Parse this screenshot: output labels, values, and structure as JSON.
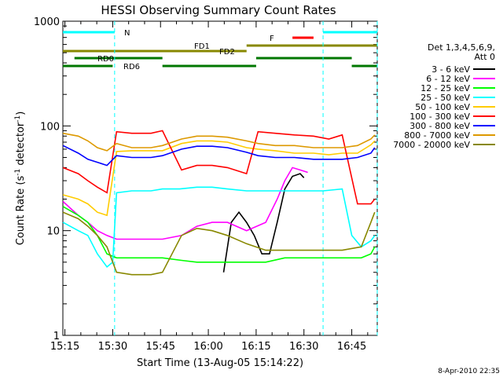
{
  "chart_data": {
    "type": "line",
    "title": "HESSI Observing Summary Count Rates",
    "xlabel": "Start Time (13-Aug-05 15:14:22)",
    "ylabel": "Count Rate (s⁻¹ detector⁻¹)",
    "ylabel_main": "Count Rate (s",
    "ylabel_sup1": "-1",
    "ylabel_mid": " detector",
    "ylabel_sup2": "-1",
    "ylabel_end": ")",
    "yscale": "log",
    "ylim": [
      1,
      1000
    ],
    "xlim": [
      15.2394,
      16.8833
    ],
    "x_ticks": [
      {
        "label": "15:15",
        "value": 15.25
      },
      {
        "label": "15:30",
        "value": 15.5
      },
      {
        "label": "15:45",
        "value": 15.75
      },
      {
        "label": "16:00",
        "value": 16.0
      },
      {
        "label": "16:15",
        "value": 16.25
      },
      {
        "label": "16:30",
        "value": 16.5
      },
      {
        "label": "16:45",
        "value": 16.75
      }
    ],
    "y_ticks": [
      {
        "label": "1",
        "value": 1
      },
      {
        "label": "10",
        "value": 10
      },
      {
        "label": "100",
        "value": 100
      },
      {
        "label": "1000",
        "value": 1000
      }
    ],
    "legend_header": [
      "Det 1,3,4,5,6,9,",
      "Att 0"
    ],
    "legend_position": "right",
    "date_stamp": "8-Apr-2010 22:35",
    "series": [
      {
        "name": "3 - 6 keV",
        "color": "#000000",
        "x": [
          16.08,
          16.12,
          16.16,
          16.2,
          16.24,
          16.28,
          16.32,
          16.36,
          16.4,
          16.44,
          16.48,
          16.5
        ],
        "y": [
          4,
          12,
          15,
          12,
          9,
          6,
          6,
          12,
          25,
          33,
          35,
          32
        ]
      },
      {
        "name": "6 - 12 keV",
        "color": "#ff00ff",
        "x": [
          15.24,
          15.32,
          15.37,
          15.42,
          15.47,
          15.52,
          15.6,
          15.7,
          15.76,
          15.86,
          15.94,
          16.02,
          16.1,
          16.2,
          16.3,
          16.36,
          16.4,
          16.44,
          16.48,
          16.52
        ],
        "y": [
          19,
          14,
          12,
          10,
          9,
          8.3,
          8.3,
          8.3,
          8.3,
          9,
          11,
          12,
          12,
          10,
          12,
          20,
          30,
          40,
          38,
          36
        ]
      },
      {
        "name": "12 - 25 keV",
        "color": "#00ff00",
        "x": [
          15.24,
          15.32,
          15.37,
          15.42,
          15.47,
          15.52,
          15.6,
          15.7,
          15.76,
          15.86,
          15.94,
          16.02,
          16.1,
          16.2,
          16.3,
          16.4,
          16.5,
          16.6,
          16.7,
          16.8,
          16.85,
          16.87
        ],
        "y": [
          17,
          14,
          12,
          9,
          6,
          5.5,
          5.5,
          5.5,
          5.5,
          5.2,
          5,
          5,
          5,
          5,
          5,
          5.5,
          5.5,
          5.5,
          5.5,
          5.5,
          6,
          7
        ]
      },
      {
        "name": "25 - 50 keV",
        "color": "#00ffff",
        "x": [
          15.24,
          15.32,
          15.37,
          15.42,
          15.47,
          15.5,
          15.52,
          15.6,
          15.7,
          15.76,
          15.85,
          15.94,
          16.02,
          16.1,
          16.2,
          16.25,
          16.3,
          16.4,
          16.5,
          16.6,
          16.7,
          16.75,
          16.8,
          16.85,
          16.87
        ],
        "y": [
          12,
          10,
          9,
          6,
          4.5,
          5,
          23,
          24,
          24,
          25,
          25,
          26,
          26,
          25,
          24,
          24,
          24,
          24,
          24,
          24,
          25,
          9,
          7,
          8,
          9
        ]
      },
      {
        "name": "50 - 100 keV",
        "color": "#ffcc00",
        "x": [
          15.24,
          15.32,
          15.37,
          15.42,
          15.47,
          15.52,
          15.6,
          15.7,
          15.76,
          15.86,
          15.94,
          16.02,
          16.1,
          16.2,
          16.26,
          16.35,
          16.45,
          16.55,
          16.63,
          16.7,
          16.78,
          16.85,
          16.87
        ],
        "y": [
          22,
          20,
          18,
          15,
          14,
          57,
          58,
          58,
          58,
          68,
          72,
          72,
          70,
          62,
          60,
          58,
          55,
          55,
          53,
          55,
          55,
          66,
          72
        ]
      },
      {
        "name": "100 - 300 keV",
        "color": "#ff0000",
        "x": [
          15.24,
          15.32,
          15.37,
          15.42,
          15.47,
          15.52,
          15.6,
          15.7,
          15.76,
          15.86,
          15.94,
          16.02,
          16.1,
          16.2,
          16.26,
          16.35,
          16.45,
          16.55,
          16.63,
          16.7,
          16.78,
          16.85,
          16.87
        ],
        "y": [
          40,
          35,
          30,
          26,
          23,
          88,
          85,
          85,
          90,
          38,
          42,
          42,
          40,
          35,
          88,
          85,
          82,
          80,
          75,
          82,
          18,
          18,
          20
        ]
      },
      {
        "name": "300 - 800 keV",
        "color": "#0000ff",
        "x": [
          15.24,
          15.32,
          15.37,
          15.42,
          15.47,
          15.52,
          15.6,
          15.7,
          15.76,
          15.86,
          15.94,
          16.02,
          16.1,
          16.2,
          16.26,
          16.35,
          16.45,
          16.55,
          16.63,
          16.7,
          16.78,
          16.85,
          16.87
        ],
        "y": [
          65,
          55,
          48,
          45,
          42,
          52,
          50,
          50,
          52,
          60,
          64,
          64,
          62,
          56,
          52,
          50,
          50,
          48,
          48,
          48,
          50,
          55,
          62
        ]
      },
      {
        "name": "800 - 7000 keV",
        "color": "#dd9900",
        "x": [
          15.24,
          15.32,
          15.37,
          15.42,
          15.47,
          15.52,
          15.6,
          15.7,
          15.76,
          15.86,
          15.94,
          16.02,
          16.1,
          16.2,
          16.26,
          16.35,
          16.45,
          16.55,
          16.63,
          16.7,
          16.78,
          16.85,
          16.87
        ],
        "y": [
          85,
          80,
          72,
          62,
          58,
          68,
          62,
          62,
          65,
          75,
          80,
          80,
          78,
          72,
          68,
          65,
          65,
          62,
          62,
          62,
          65,
          75,
          82
        ]
      },
      {
        "name": "7000 - 20000 keV",
        "color": "#888800",
        "x": [
          15.24,
          15.32,
          15.37,
          15.42,
          15.47,
          15.52,
          15.6,
          15.7,
          15.76,
          15.86,
          15.94,
          16.02,
          16.1,
          16.2,
          16.3,
          16.4,
          16.5,
          16.6,
          16.7,
          16.8,
          16.85,
          16.87
        ],
        "y": [
          15,
          13,
          11,
          9,
          7,
          4,
          3.8,
          3.8,
          4,
          9,
          10.5,
          10,
          9,
          7.5,
          6.5,
          6.5,
          6.5,
          6.5,
          6.5,
          7,
          12,
          15
        ]
      }
    ],
    "flag_labels": [
      {
        "text": "N",
        "color": "#00ffff"
      },
      {
        "text": "FD1",
        "color": "#888800"
      },
      {
        "text": "FD2",
        "color": "#888800"
      },
      {
        "text": "F",
        "color": "#ff0000"
      },
      {
        "text": "RD0",
        "color": "#007700"
      },
      {
        "text": "RD6",
        "color": "#007700"
      }
    ],
    "flags": {
      "night": [
        [
          15.2394,
          15.51
        ],
        [
          16.6,
          16.8833
        ]
      ],
      "fd1": [
        [
          15.2394,
          16.2
        ]
      ],
      "fd2": [
        [
          16.2,
          16.8833
        ]
      ],
      "flare": [
        [
          16.44,
          16.55
        ]
      ],
      "rd0": [
        [
          15.3,
          15.76
        ],
        [
          16.25,
          16.75
        ]
      ],
      "rd6": [
        [
          15.2394,
          15.5
        ],
        [
          15.76,
          16.25
        ],
        [
          16.75,
          16.8833
        ]
      ]
    },
    "night_markers": [
      15.51,
      16.6,
      16.8833
    ]
  }
}
